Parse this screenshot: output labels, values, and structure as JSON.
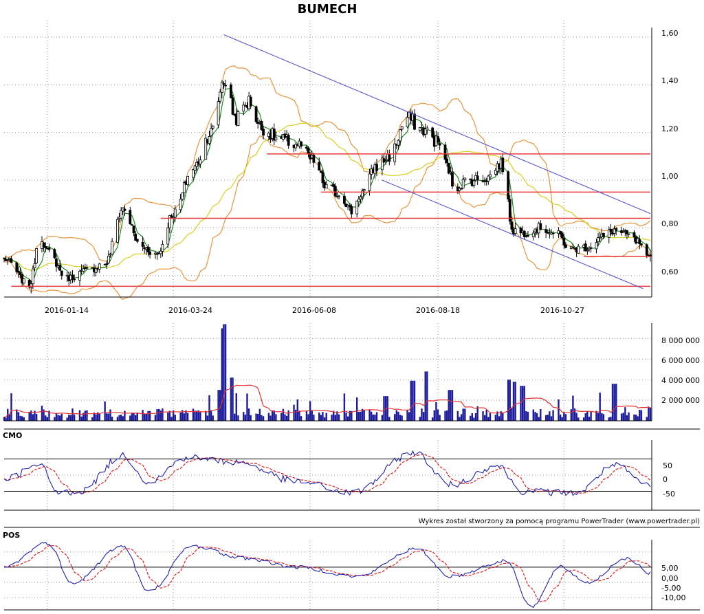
{
  "title": "BUMECH",
  "credit": "Wykres został stworzony za pomocą programu PowerTrader (www.powertrader.pl)",
  "colors": {
    "candle": "#000000",
    "bb": "#e8943a",
    "ma_fast": "#1a8a1a",
    "ma_slow": "#d8cf20",
    "hline": "#e8393a",
    "channel": "#5555cc",
    "volume": "#1c1c9a",
    "volume_avg": "#e83030",
    "osc": "#2020b0",
    "osc_signal": "#e02020",
    "grid": "#9a9a9a"
  },
  "chart_data": [
    {
      "panel": "price",
      "type": "line",
      "title": "BUMECH",
      "x_ticks": [
        "2016-01-14",
        "2016-03-24",
        "2016-06-08",
        "2016-08-18",
        "2016-10-27"
      ],
      "y_ticks": [
        "1,60",
        "1,40",
        "1,20",
        "1,00",
        "0,80",
        "0,60"
      ],
      "ylim": [
        0.51,
        1.64
      ],
      "x_range": [
        "2015-12-21",
        "2016-12-14"
      ],
      "series": [
        {
          "role": "close",
          "points": [
            [
              "2015-12-21",
              0.67
            ],
            [
              "2016-01-04",
              0.56
            ],
            [
              "2016-01-10",
              0.77
            ],
            [
              "2016-01-14",
              0.7
            ],
            [
              "2016-01-25",
              0.59
            ],
            [
              "2016-02-05",
              0.62
            ],
            [
              "2016-02-15",
              0.65
            ],
            [
              "2016-02-25",
              0.88
            ],
            [
              "2016-03-06",
              0.72
            ],
            [
              "2016-03-15",
              0.69
            ],
            [
              "2016-03-24",
              0.86
            ],
            [
              "2016-04-04",
              1.05
            ],
            [
              "2016-04-14",
              1.2
            ],
            [
              "2016-04-21",
              1.42
            ],
            [
              "2016-04-28",
              1.26
            ],
            [
              "2016-05-05",
              1.33
            ],
            [
              "2016-05-12",
              1.22
            ],
            [
              "2016-05-22",
              1.17
            ],
            [
              "2016-06-01",
              1.15
            ],
            [
              "2016-06-10",
              1.08
            ],
            [
              "2016-06-17",
              0.97
            ],
            [
              "2016-06-25",
              0.94
            ],
            [
              "2016-07-01",
              0.87
            ],
            [
              "2016-07-07",
              0.95
            ],
            [
              "2016-07-15",
              1.06
            ],
            [
              "2016-07-22",
              1.1
            ],
            [
              "2016-08-01",
              1.26
            ],
            [
              "2016-08-10",
              1.21
            ],
            [
              "2016-08-18",
              1.16
            ],
            [
              "2016-08-23",
              1.06
            ],
            [
              "2016-08-27",
              0.97
            ],
            [
              "2016-09-04",
              1.0
            ],
            [
              "2016-09-14",
              1.01
            ],
            [
              "2016-09-22",
              1.07
            ],
            [
              "2016-09-29",
              0.79
            ],
            [
              "2016-10-04",
              0.78
            ],
            [
              "2016-10-14",
              0.8
            ],
            [
              "2016-10-24",
              0.77
            ],
            [
              "2016-10-30",
              0.71
            ],
            [
              "2016-11-09",
              0.72
            ],
            [
              "2016-11-17",
              0.76
            ],
            [
              "2016-11-24",
              0.79
            ],
            [
              "2016-12-01",
              0.77
            ],
            [
              "2016-12-07",
              0.74
            ],
            [
              "2016-12-12",
              0.67
            ]
          ]
        }
      ],
      "levels": [
        0.555,
        0.68,
        0.84,
        0.95,
        1.11
      ],
      "level_starts": [
        "2015-12-25",
        "2016-11-07",
        "2016-03-17",
        "2016-06-14",
        "2016-05-15"
      ],
      "channel": [
        {
          "from": [
            "2016-04-21",
            1.61
          ],
          "to": [
            "2016-12-14",
            0.86
          ]
        },
        {
          "from": [
            "2016-07-18",
            1.0
          ],
          "to": [
            "2016-12-10",
            0.545
          ]
        }
      ]
    },
    {
      "panel": "volume",
      "type": "bar",
      "y_ticks": [
        "8 000 000",
        "6 000 000",
        "4 000 000",
        "2 000 000"
      ],
      "ylim": [
        0,
        9500000
      ],
      "series": [
        {
          "role": "volume",
          "points": [
            [
              "2016-04-18",
              3000000
            ],
            [
              "2016-04-21",
              9000000
            ],
            [
              "2016-04-22",
              9400000
            ],
            [
              "2016-04-25",
              4200000
            ],
            [
              "2016-07-20",
              2400000
            ],
            [
              "2016-08-04",
              3900000
            ],
            [
              "2016-08-12",
              4800000
            ],
            [
              "2016-08-25",
              3000000
            ],
            [
              "2016-09-27",
              4000000
            ],
            [
              "2016-09-29",
              3800000
            ],
            [
              "2016-10-04",
              3400000
            ],
            [
              "2016-11-24",
              3600000
            ],
            [
              "2016-12-14",
              1300000
            ]
          ]
        }
      ]
    },
    {
      "panel": "oscillator",
      "type": "line",
      "label": "CMO",
      "y_ticks": [
        "50",
        "0",
        "-50"
      ],
      "ylim": [
        -100,
        100
      ],
      "levels": [
        50,
        -50
      ],
      "series": [
        {
          "role": "cmo",
          "points": [
            [
              "2015-12-21",
              -10
            ],
            [
              "2016-01-10",
              30
            ],
            [
              "2016-01-20",
              -55
            ],
            [
              "2016-02-01",
              -50
            ],
            [
              "2016-02-25",
              60
            ],
            [
              "2016-03-10",
              -20
            ],
            [
              "2016-04-01",
              55
            ],
            [
              "2016-04-28",
              40
            ],
            [
              "2016-06-01",
              -20
            ],
            [
              "2016-07-01",
              -55
            ],
            [
              "2016-08-05",
              70
            ],
            [
              "2016-08-25",
              -30
            ],
            [
              "2016-09-20",
              30
            ],
            [
              "2016-10-04",
              -50
            ],
            [
              "2016-11-03",
              -55
            ],
            [
              "2016-11-24",
              30
            ],
            [
              "2016-12-14",
              -35
            ]
          ]
        }
      ]
    },
    {
      "panel": "oscillator",
      "type": "line",
      "label": "POS",
      "y_ticks": [
        "5,00",
        "0,00",
        "-5,00",
        "-10,00"
      ],
      "ylim": [
        -14,
        9
      ],
      "series": [
        {
          "role": "pos",
          "points": [
            [
              "2015-12-21",
              0
            ],
            [
              "2016-01-14",
              8
            ],
            [
              "2016-01-28",
              -5
            ],
            [
              "2016-02-25",
              7
            ],
            [
              "2016-03-10",
              -8
            ],
            [
              "2016-04-04",
              7
            ],
            [
              "2016-05-01",
              3
            ],
            [
              "2016-06-01",
              0
            ],
            [
              "2016-07-04",
              -3
            ],
            [
              "2016-08-06",
              6
            ],
            [
              "2016-08-25",
              -3
            ],
            [
              "2016-09-25",
              2
            ],
            [
              "2016-10-09",
              -13
            ],
            [
              "2016-10-25",
              0
            ],
            [
              "2016-11-09",
              -5
            ],
            [
              "2016-12-01",
              3
            ],
            [
              "2016-12-14",
              -2
            ]
          ]
        }
      ]
    }
  ]
}
